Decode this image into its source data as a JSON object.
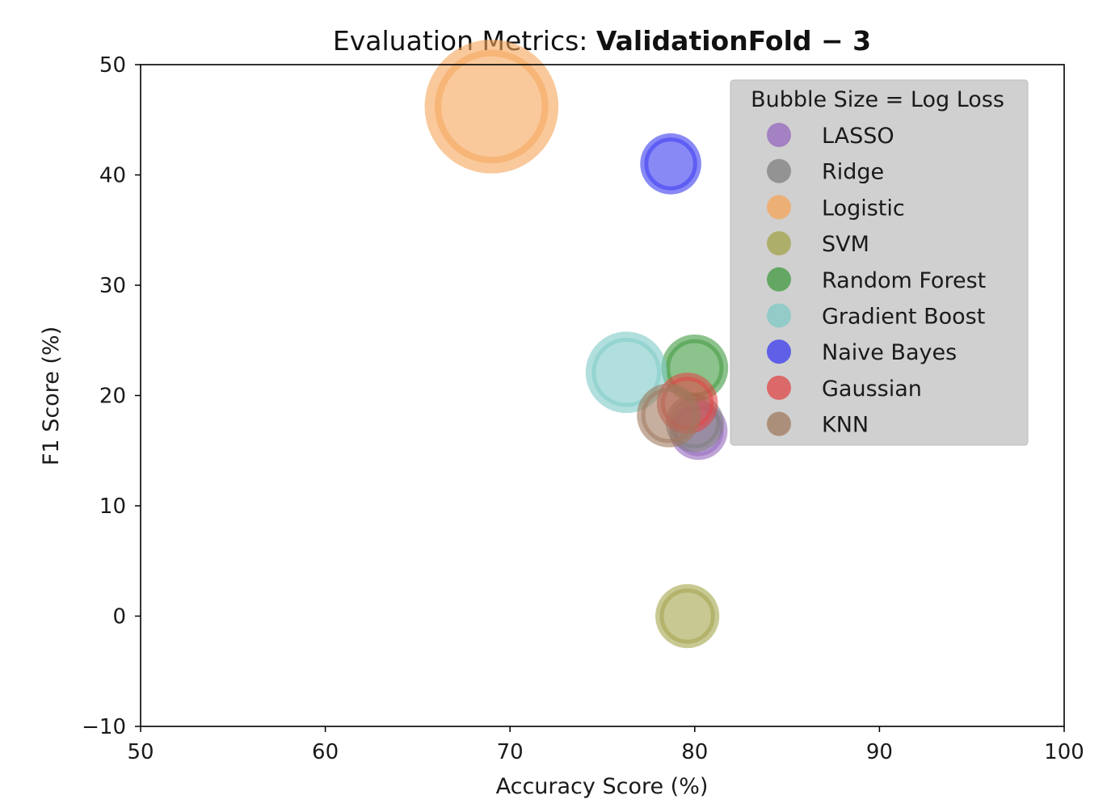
{
  "chart_data": {
    "type": "scatter",
    "title_prefix": "Evaluation Metrics: ",
    "title_bold": "ValidationFold − 3",
    "xlabel": "Accuracy Score (%)",
    "ylabel": "F1 Score (%)",
    "xlim": [
      50,
      100
    ],
    "ylim": [
      -10,
      50
    ],
    "x_ticks": [
      "50",
      "60",
      "70",
      "80",
      "90",
      "100"
    ],
    "y_ticks": [
      "−10",
      "0",
      "10",
      "20",
      "30",
      "40",
      "50"
    ],
    "grid": false,
    "legend": {
      "title": "Bubble Size = Log Loss",
      "placement": "top-right"
    },
    "size_encoding": "Log Loss",
    "series": [
      {
        "name": "LASSO",
        "color": "#9467bd",
        "x": 80.2,
        "y": 16.8,
        "size": 1.0
      },
      {
        "name": "Ridge",
        "color": "#7f7f7f",
        "x": 80.0,
        "y": 17.5,
        "size": 1.0
      },
      {
        "name": "Logistic",
        "color": "#f5a55a",
        "x": 69.0,
        "y": 46.2,
        "size": 2.3
      },
      {
        "name": "SVM",
        "color": "#a3a34a",
        "x": 79.6,
        "y": 0.0,
        "size": 1.1
      },
      {
        "name": "Random Forest",
        "color": "#3f9a3f",
        "x": 80.0,
        "y": 22.5,
        "size": 1.15
      },
      {
        "name": "Gradient Boost",
        "color": "#7dcac6",
        "x": 76.3,
        "y": 22.1,
        "size": 1.4
      },
      {
        "name": "Naive Bayes",
        "color": "#3a3af0",
        "x": 78.7,
        "y": 41.0,
        "size": 1.05
      },
      {
        "name": "Gaussian",
        "color": "#e04747",
        "x": 79.6,
        "y": 19.3,
        "size": 1.05
      },
      {
        "name": "KNN",
        "color": "#a0795e",
        "x": 78.6,
        "y": 18.2,
        "size": 1.1
      }
    ]
  }
}
